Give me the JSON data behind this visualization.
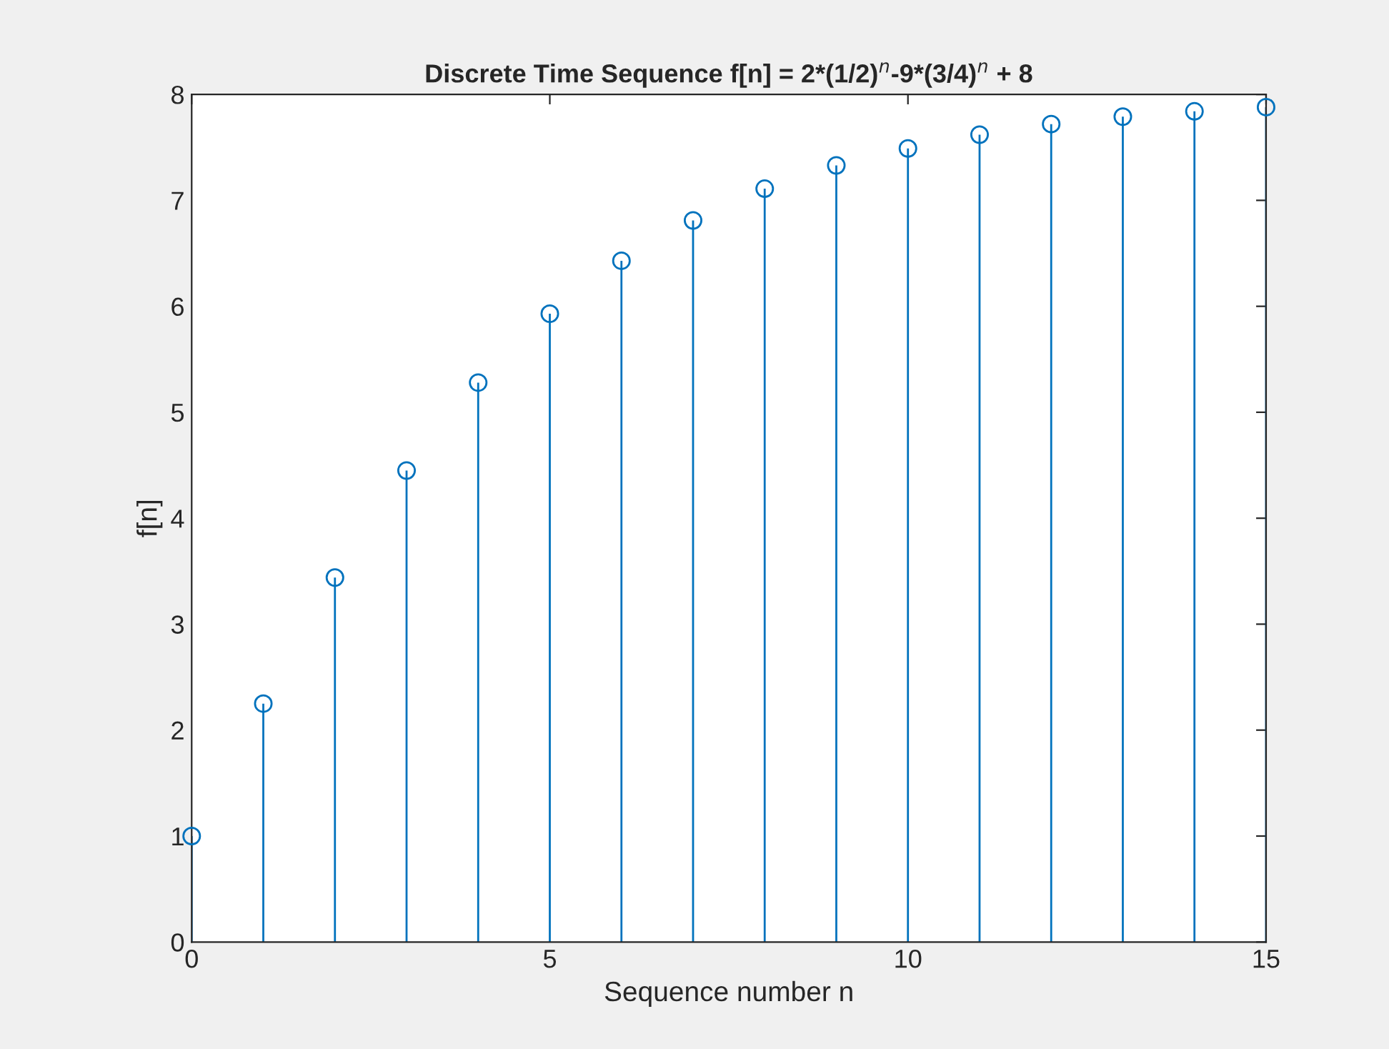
{
  "chart_data": {
    "type": "lollipop",
    "title": "Discrete Time Sequence f[n] = 2*(1/2)$^{n}$-9*(3/4)$^{n}$ + 8",
    "xlabel": "Sequence number n",
    "ylabel": "f[n]",
    "x": [
      0,
      1,
      2,
      3,
      4,
      5,
      6,
      7,
      8,
      9,
      10,
      11,
      12,
      13,
      14,
      15
    ],
    "values": [
      1.0,
      2.25,
      3.44,
      4.45,
      5.28,
      5.93,
      6.43,
      6.81,
      7.11,
      7.33,
      7.49,
      7.62,
      7.72,
      7.79,
      7.84,
      7.88
    ],
    "color": "#0072bd",
    "marker": "circle",
    "legend": false,
    "xlim": [
      0,
      15
    ],
    "xticks": [
      0,
      5,
      10,
      15
    ],
    "ylim": [
      0,
      8
    ],
    "yticks": [
      0,
      1,
      2,
      3,
      4,
      5,
      6,
      7,
      8
    ]
  }
}
